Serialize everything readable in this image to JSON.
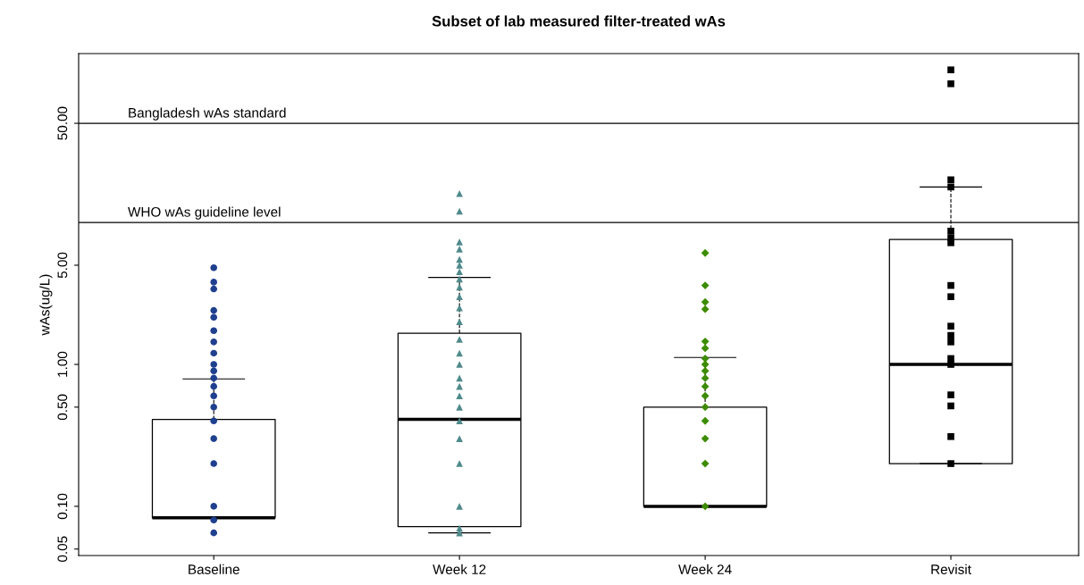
{
  "chart_data": {
    "type": "box",
    "title": "Subset of lab measured filter-treated wAs",
    "ylabel": "wAs(ug/L)",
    "categories": [
      "Baseline",
      "Week 12",
      "Week 24",
      "Revisit"
    ],
    "log": true,
    "ylim": [
      0.045,
      155
    ],
    "grid": false,
    "legend": false,
    "yticks": [
      {
        "value": 0.05,
        "label": "0.05"
      },
      {
        "value": 0.1,
        "label": "0.10"
      },
      {
        "value": 0.5,
        "label": "0.50"
      },
      {
        "value": 1,
        "label": "1.00"
      },
      {
        "value": 5,
        "label": "5.00"
      },
      {
        "value": 50,
        "label": "50.00"
      }
    ],
    "boxes": [
      {
        "low": 0.083,
        "q1": 0.083,
        "median": 0.083,
        "q3": 0.41,
        "high": 0.79
      },
      {
        "low": 0.065,
        "q1": 0.072,
        "median": 0.41,
        "q3": 1.66,
        "high": 4.1
      },
      {
        "low": 0.1,
        "q1": 0.1,
        "median": 0.1,
        "q3": 0.5,
        "high": 1.12
      },
      {
        "low": 0.2,
        "q1": 0.2,
        "median": 1.0,
        "q3": 7.6,
        "high": 17.8
      }
    ],
    "ref_lines": [
      {
        "axis": "y",
        "value": 50,
        "label": "Bangladesh wAs standard",
        "color": "#000000"
      },
      {
        "axis": "y",
        "value": 10,
        "label": "WHO wAs guideline level",
        "color": "#000000"
      }
    ],
    "series": [
      {
        "type": "scatter",
        "color": "#1f3f8f",
        "marker": "circle",
        "x": [
          "Baseline",
          "Baseline",
          "Baseline",
          "Baseline",
          "Baseline",
          "Baseline",
          "Baseline",
          "Baseline",
          "Baseline",
          "Baseline",
          "Baseline",
          "Baseline",
          "Baseline",
          "Baseline",
          "Baseline",
          "Baseline",
          "Baseline",
          "Baseline",
          "Baseline",
          "Baseline"
        ],
        "values": [
          0.065,
          0.08,
          0.1,
          0.2,
          0.3,
          0.4,
          0.5,
          0.6,
          0.7,
          0.8,
          0.9,
          1.0,
          1.2,
          1.44,
          1.73,
          2.15,
          2.4,
          3.4,
          3.8,
          4.8
        ]
      },
      {
        "type": "scatter",
        "color": "#4f8a8b",
        "marker": "triangle",
        "x": [
          "Week 12",
          "Week 12",
          "Week 12",
          "Week 12",
          "Week 12",
          "Week 12",
          "Week 12",
          "Week 12",
          "Week 12",
          "Week 12",
          "Week 12",
          "Week 12",
          "Week 12",
          "Week 12",
          "Week 12",
          "Week 12",
          "Week 12",
          "Week 12",
          "Week 12",
          "Week 12",
          "Week 12",
          "Week 12",
          "Week 12",
          "Week 12",
          "Week 12"
        ],
        "values": [
          0.065,
          0.07,
          0.1,
          0.2,
          0.3,
          0.4,
          0.5,
          0.6,
          0.7,
          0.8,
          1.0,
          1.2,
          1.5,
          2.0,
          2.5,
          3.0,
          3.5,
          4.0,
          4.5,
          5.0,
          5.5,
          6.5,
          7.3,
          12,
          16
        ]
      },
      {
        "type": "scatter",
        "color": "#3d8c00",
        "marker": "diamond",
        "x": [
          "Week 24",
          "Week 24",
          "Week 24",
          "Week 24",
          "Week 24",
          "Week 24",
          "Week 24",
          "Week 24",
          "Week 24",
          "Week 24",
          "Week 24",
          "Week 24",
          "Week 24",
          "Week 24",
          "Week 24",
          "Week 24",
          "Week 24"
        ],
        "values": [
          0.1,
          0.2,
          0.3,
          0.4,
          0.5,
          0.6,
          0.7,
          0.8,
          0.9,
          1.0,
          1.1,
          1.3,
          1.45,
          2.45,
          2.75,
          3.6,
          6.1
        ]
      },
      {
        "type": "scatter",
        "color": "#000000",
        "marker": "square",
        "x": [
          "Revisit",
          "Revisit",
          "Revisit",
          "Revisit",
          "Revisit",
          "Revisit",
          "Revisit",
          "Revisit",
          "Revisit",
          "Revisit",
          "Revisit",
          "Revisit",
          "Revisit",
          "Revisit",
          "Revisit",
          "Revisit",
          "Revisit",
          "Revisit"
        ],
        "values": [
          0.2,
          0.31,
          0.51,
          0.61,
          1.0,
          1.1,
          1.44,
          1.6,
          1.86,
          3.0,
          3.6,
          7.2,
          7.8,
          8.7,
          17.8,
          20,
          95,
          119
        ]
      }
    ]
  }
}
